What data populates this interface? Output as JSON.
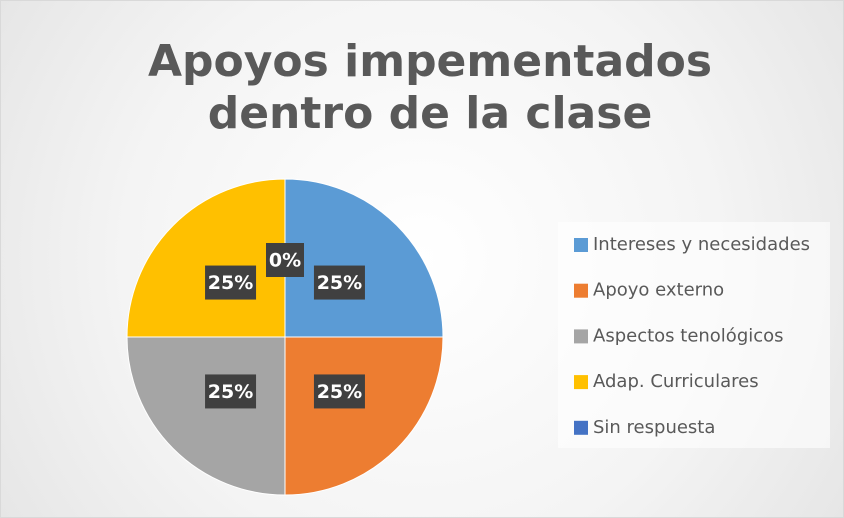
{
  "chart_data": {
    "type": "pie",
    "title": "Apoyos impementados dentro de la clase",
    "categories": [
      "Intereses y necesidades",
      "Apoyo externo",
      "Aspectos tenológicos",
      "Adap. Curriculares",
      "Sin respuesta"
    ],
    "values": [
      25,
      25,
      25,
      25,
      0
    ],
    "value_labels": [
      "25%",
      "25%",
      "25%",
      "25%",
      "0%"
    ],
    "colors": [
      "#5b9bd5",
      "#ed7d31",
      "#a5a5a5",
      "#ffc000",
      "#4472c4"
    ],
    "legend": "right"
  }
}
